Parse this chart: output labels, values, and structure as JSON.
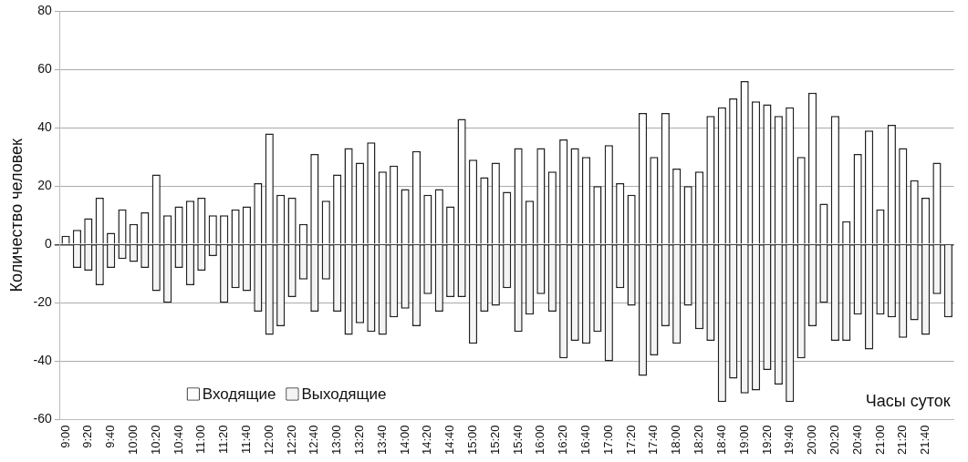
{
  "chart_data": {
    "type": "bar",
    "stacked": true,
    "ylabel": "Количество человек",
    "xlabel": "Часы суток",
    "categories": [
      "9:00",
      null,
      "9:20",
      null,
      "9:40",
      null,
      "10:00",
      null,
      "10:20",
      null,
      "10:40",
      null,
      "11:00",
      null,
      "11:20",
      null,
      "11:40",
      null,
      "12:00",
      null,
      "12:20",
      null,
      "12:40",
      null,
      "13:00",
      null,
      "13:20",
      null,
      "13:40",
      null,
      "14:00",
      null,
      "14:20",
      null,
      "14:40",
      null,
      "15:00",
      null,
      "15:20",
      null,
      "15:40",
      null,
      "16:00",
      null,
      "16:20",
      null,
      "16:40",
      null,
      "17:00",
      null,
      "17:20",
      null,
      "17:40",
      null,
      "18:00",
      null,
      "18:20",
      null,
      "18:40",
      null,
      "19:00",
      null,
      "19:20",
      null,
      "19:40",
      null,
      "20:00",
      null,
      "20:20",
      null,
      "20:40",
      null,
      "21:00",
      null,
      "21:20",
      null,
      "21:40",
      null,
      null
    ],
    "series": [
      {
        "name": "Входящие",
        "color": "#ffffff",
        "values": [
          3,
          5,
          9,
          16,
          4,
          12,
          7,
          11,
          24,
          10,
          13,
          15,
          16,
          10,
          10,
          12,
          13,
          21,
          38,
          17,
          16,
          7,
          31,
          15,
          24,
          33,
          28,
          35,
          25,
          27,
          19,
          32,
          17,
          19,
          13,
          43,
          29,
          23,
          28,
          18,
          33,
          15,
          33,
          25,
          36,
          33,
          30,
          20,
          34,
          21,
          17,
          45,
          30,
          45,
          26,
          20,
          25,
          44,
          47,
          50,
          56,
          49,
          48,
          44,
          47,
          30,
          52,
          14,
          44,
          8,
          31,
          39,
          12,
          41,
          33,
          22,
          16,
          28,
          null
        ]
      },
      {
        "name": "Выходящие",
        "color": "#f4f4f4",
        "values": [
          null,
          -8,
          -9,
          -14,
          -8,
          -5,
          -6,
          -8,
          -16,
          -20,
          -8,
          -14,
          -9,
          -4,
          -20,
          -15,
          -16,
          -23,
          -31,
          -28,
          -18,
          -12,
          -23,
          -12,
          -23,
          -31,
          -27,
          -30,
          -31,
          -25,
          -22,
          -28,
          -17,
          -23,
          -18,
          -18,
          -34,
          -23,
          -21,
          -15,
          -30,
          -24,
          -17,
          -23,
          -39,
          -33,
          -34,
          -30,
          -40,
          -15,
          -21,
          -45,
          -38,
          -28,
          -34,
          -21,
          -29,
          -33,
          -54,
          -46,
          -51,
          -50,
          -43,
          -48,
          -54,
          -39,
          -28,
          -20,
          -33,
          -33,
          -24,
          -36,
          -24,
          -25,
          -32,
          -26,
          -31,
          -17,
          -25
        ]
      }
    ],
    "ylim": [
      -60,
      80
    ],
    "yticks": [
      -60,
      -40,
      -20,
      0,
      20,
      40,
      60,
      80
    ],
    "grid": "y",
    "legend": "bottom left"
  }
}
